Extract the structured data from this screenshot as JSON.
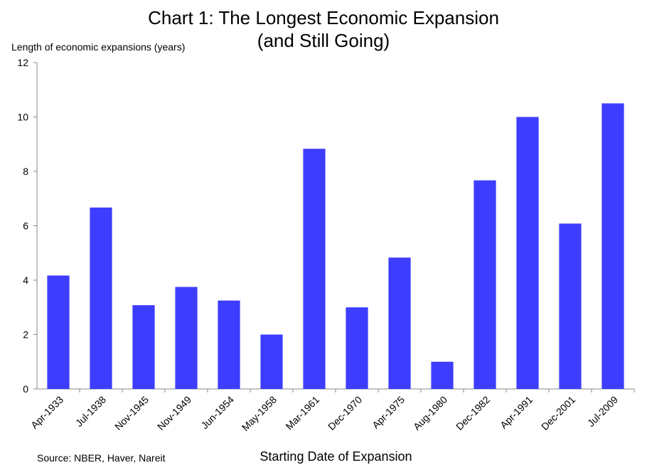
{
  "chart_data": {
    "type": "bar",
    "title": "Chart 1: The Longest Economic Expansion",
    "subtitle": "(and Still Going)",
    "ylabel": "Length of economic expansions (years)",
    "xlabel": "Starting Date of Expansion",
    "source": "Source: NBER,  Haver,  Nareit",
    "categories": [
      "Apr-1933",
      "Jul-1938",
      "Nov-1945",
      "Nov-1949",
      "Jun-1954",
      "May-1958",
      "Mar-1961",
      "Dec-1970",
      "Apr-1975",
      "Aug-1980",
      "Dec-1982",
      "Apr-1991",
      "Dec-2001",
      "Jul-2009"
    ],
    "values": [
      4.17,
      6.67,
      3.08,
      3.75,
      3.25,
      2.0,
      8.83,
      3.0,
      4.83,
      1.0,
      7.67,
      10.0,
      6.08,
      10.5
    ],
    "ylim": [
      0,
      12
    ],
    "yticks": [
      0,
      2,
      4,
      6,
      8,
      10,
      12
    ],
    "grid": false,
    "bar_color": "#3d3dff"
  }
}
